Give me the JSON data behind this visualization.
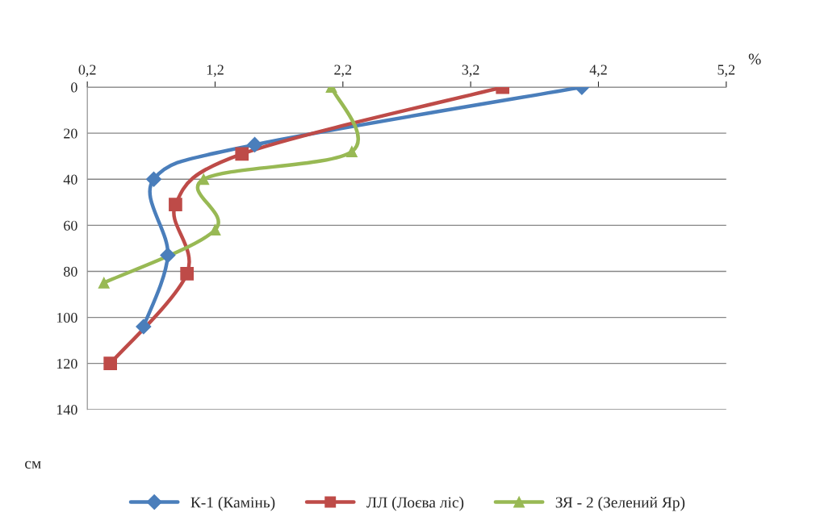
{
  "chart_data": {
    "type": "line",
    "xlabel": "%",
    "ylabel": "см",
    "xlim": [
      0.2,
      5.2
    ],
    "xticks": [
      {
        "value": 0.2,
        "label": "0,2"
      },
      {
        "value": 1.2,
        "label": "1,2"
      },
      {
        "value": 2.2,
        "label": "2,2"
      },
      {
        "value": 3.2,
        "label": "3,2"
      },
      {
        "value": 4.2,
        "label": "4,2"
      },
      {
        "value": 5.2,
        "label": "5,2"
      }
    ],
    "ylim": [
      140,
      0
    ],
    "yticks": [
      0,
      20,
      40,
      60,
      80,
      100,
      120,
      140
    ],
    "grid": "y",
    "legend": "bottom",
    "line_style": "solid",
    "series": [
      {
        "name": "К-1 (Камінь)",
        "color": "#4a7ebb",
        "marker": "diamond",
        "x": [
          4.07,
          1.51,
          0.72,
          0.83,
          0.64
        ],
        "values": [
          0,
          25,
          40,
          73,
          104
        ]
      },
      {
        "name": "ЛЛ (Лоєва ліс)",
        "color": "#be4b48",
        "marker": "square",
        "x": [
          3.45,
          1.41,
          0.89,
          0.98,
          0.38
        ],
        "values": [
          0,
          29,
          51,
          81,
          120
        ]
      },
      {
        "name": "ЗЯ - 2 (Зелений Яр)",
        "color": "#98b954",
        "marker": "triangle",
        "x": [
          2.11,
          2.27,
          1.11,
          1.2,
          0.33
        ],
        "values": [
          0,
          28,
          40,
          62,
          85
        ]
      }
    ]
  }
}
